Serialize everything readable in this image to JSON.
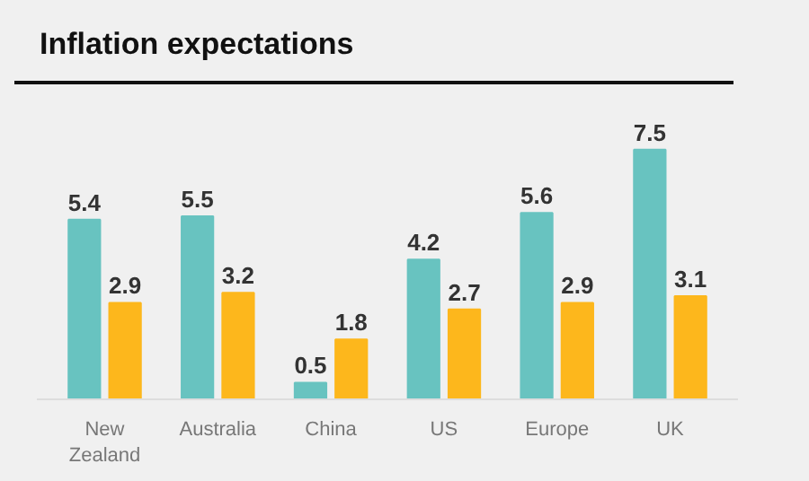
{
  "chart_data": {
    "type": "bar",
    "title": "Inflation expectations",
    "categories": [
      "New Zealand",
      "Australia",
      "China",
      "US",
      "Europe",
      "UK"
    ],
    "series": [
      {
        "color": "#68c3c0",
        "values": [
          5.4,
          5.5,
          0.5,
          4.2,
          5.6,
          7.5
        ]
      },
      {
        "color": "#fdb71c",
        "values": [
          2.9,
          3.2,
          1.8,
          2.7,
          2.9,
          3.1
        ]
      }
    ],
    "data_labels": true
  }
}
